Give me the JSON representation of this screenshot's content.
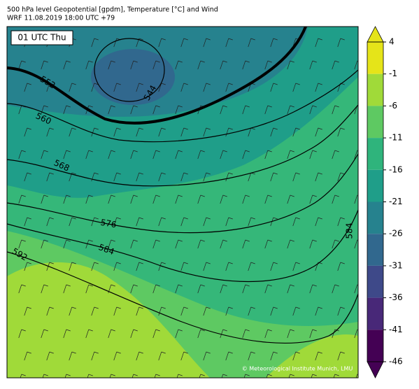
{
  "header": {
    "title": "500 hPa level Geopotential [gpdm], Temperature [°C] and Wind",
    "subtitle": "WRF 11.08.2019 18:00 UTC +79"
  },
  "map": {
    "time_label": "01 UTC Thu",
    "contour_labels": [
      "552",
      "560",
      "568",
      "576",
      "584",
      "592",
      "544",
      "584"
    ],
    "credit": "© Meteorological Institute Munich, LMU"
  },
  "colorbar": {
    "ticks": [
      4,
      -1,
      -6,
      -11,
      -16,
      -21,
      -26,
      -31,
      -36,
      -41,
      -46
    ],
    "colors": [
      "#e5e419",
      "#a0da39",
      "#5ec962",
      "#2fb47c",
      "#1f9e89",
      "#26828e",
      "#31688e",
      "#3e4989",
      "#482878",
      "#440154"
    ]
  }
}
